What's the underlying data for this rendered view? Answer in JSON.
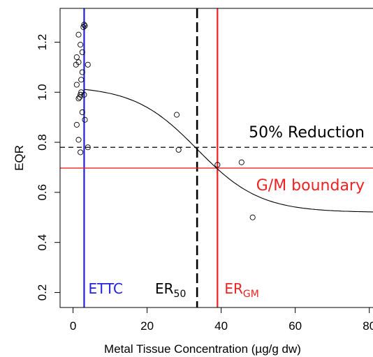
{
  "chart_data": {
    "type": "scatter",
    "xlabel": "Metal Tissue Concentration (µg/g dw)",
    "ylabel": "EQR",
    "xlim": [
      -3.5,
      81
    ],
    "ylim": [
      0.14,
      1.335
    ],
    "x_ticks": [
      0,
      20,
      40,
      60,
      80
    ],
    "x_tick_labels": [
      "0",
      "20",
      "40",
      "60",
      "80"
    ],
    "y_ticks": [
      0.2,
      0.4,
      0.6,
      0.8,
      1.0,
      1.2
    ],
    "y_tick_labels": [
      "0.2",
      "0.4",
      "0.6",
      "0.8",
      "1.0",
      "1.2"
    ],
    "grid": false,
    "points": [
      {
        "x": 3.0,
        "y": 1.27
      },
      {
        "x": 2.8,
        "y": 1.26
      },
      {
        "x": 3.2,
        "y": 1.265
      },
      {
        "x": 1.5,
        "y": 1.23
      },
      {
        "x": 2.0,
        "y": 1.19
      },
      {
        "x": 2.5,
        "y": 1.16
      },
      {
        "x": 1.0,
        "y": 1.14
      },
      {
        "x": 1.5,
        "y": 1.12
      },
      {
        "x": 0.8,
        "y": 1.11
      },
      {
        "x": 4.0,
        "y": 1.11
      },
      {
        "x": 2.5,
        "y": 1.08
      },
      {
        "x": 2.2,
        "y": 1.05
      },
      {
        "x": 1.0,
        "y": 1.03
      },
      {
        "x": 2.2,
        "y": 1.0
      },
      {
        "x": 2.0,
        "y": 0.99
      },
      {
        "x": 1.8,
        "y": 0.98
      },
      {
        "x": 1.5,
        "y": 0.975
      },
      {
        "x": 3.0,
        "y": 0.99
      },
      {
        "x": 2.5,
        "y": 0.92
      },
      {
        "x": 3.2,
        "y": 0.89
      },
      {
        "x": 1.0,
        "y": 0.87
      },
      {
        "x": 1.5,
        "y": 0.81
      },
      {
        "x": 4.0,
        "y": 0.78
      },
      {
        "x": 2.0,
        "y": 0.76
      },
      {
        "x": 28.0,
        "y": 0.91
      },
      {
        "x": 28.5,
        "y": 0.77
      },
      {
        "x": 39.0,
        "y": 0.71
      },
      {
        "x": 45.5,
        "y": 0.72
      },
      {
        "x": 48.5,
        "y": 0.5
      }
    ],
    "fit_curve": {
      "type": "sigmoid",
      "upper": 1.025,
      "lower": 0.52,
      "midpoint": 33.5,
      "width": 8.5
    },
    "reference_lines": [
      {
        "orientation": "vertical",
        "value": 3.0,
        "color": "#2020dd",
        "style": "solid",
        "label": "ETTC"
      },
      {
        "orientation": "vertical",
        "value": 33.5,
        "color": "#000000",
        "style": "dashed",
        "label_main": "ER",
        "label_sub": "50"
      },
      {
        "orientation": "vertical",
        "value": 39.0,
        "color": "#ee2222",
        "style": "solid",
        "label_main": "ER",
        "label_sub": "GM"
      },
      {
        "orientation": "horizontal",
        "value": 0.78,
        "color": "#000000",
        "style": "dashed",
        "label": "50% Reduction"
      },
      {
        "orientation": "horizontal",
        "value": 0.697,
        "color": "#ee2222",
        "style": "solid",
        "label": "G/M boundary"
      }
    ]
  }
}
